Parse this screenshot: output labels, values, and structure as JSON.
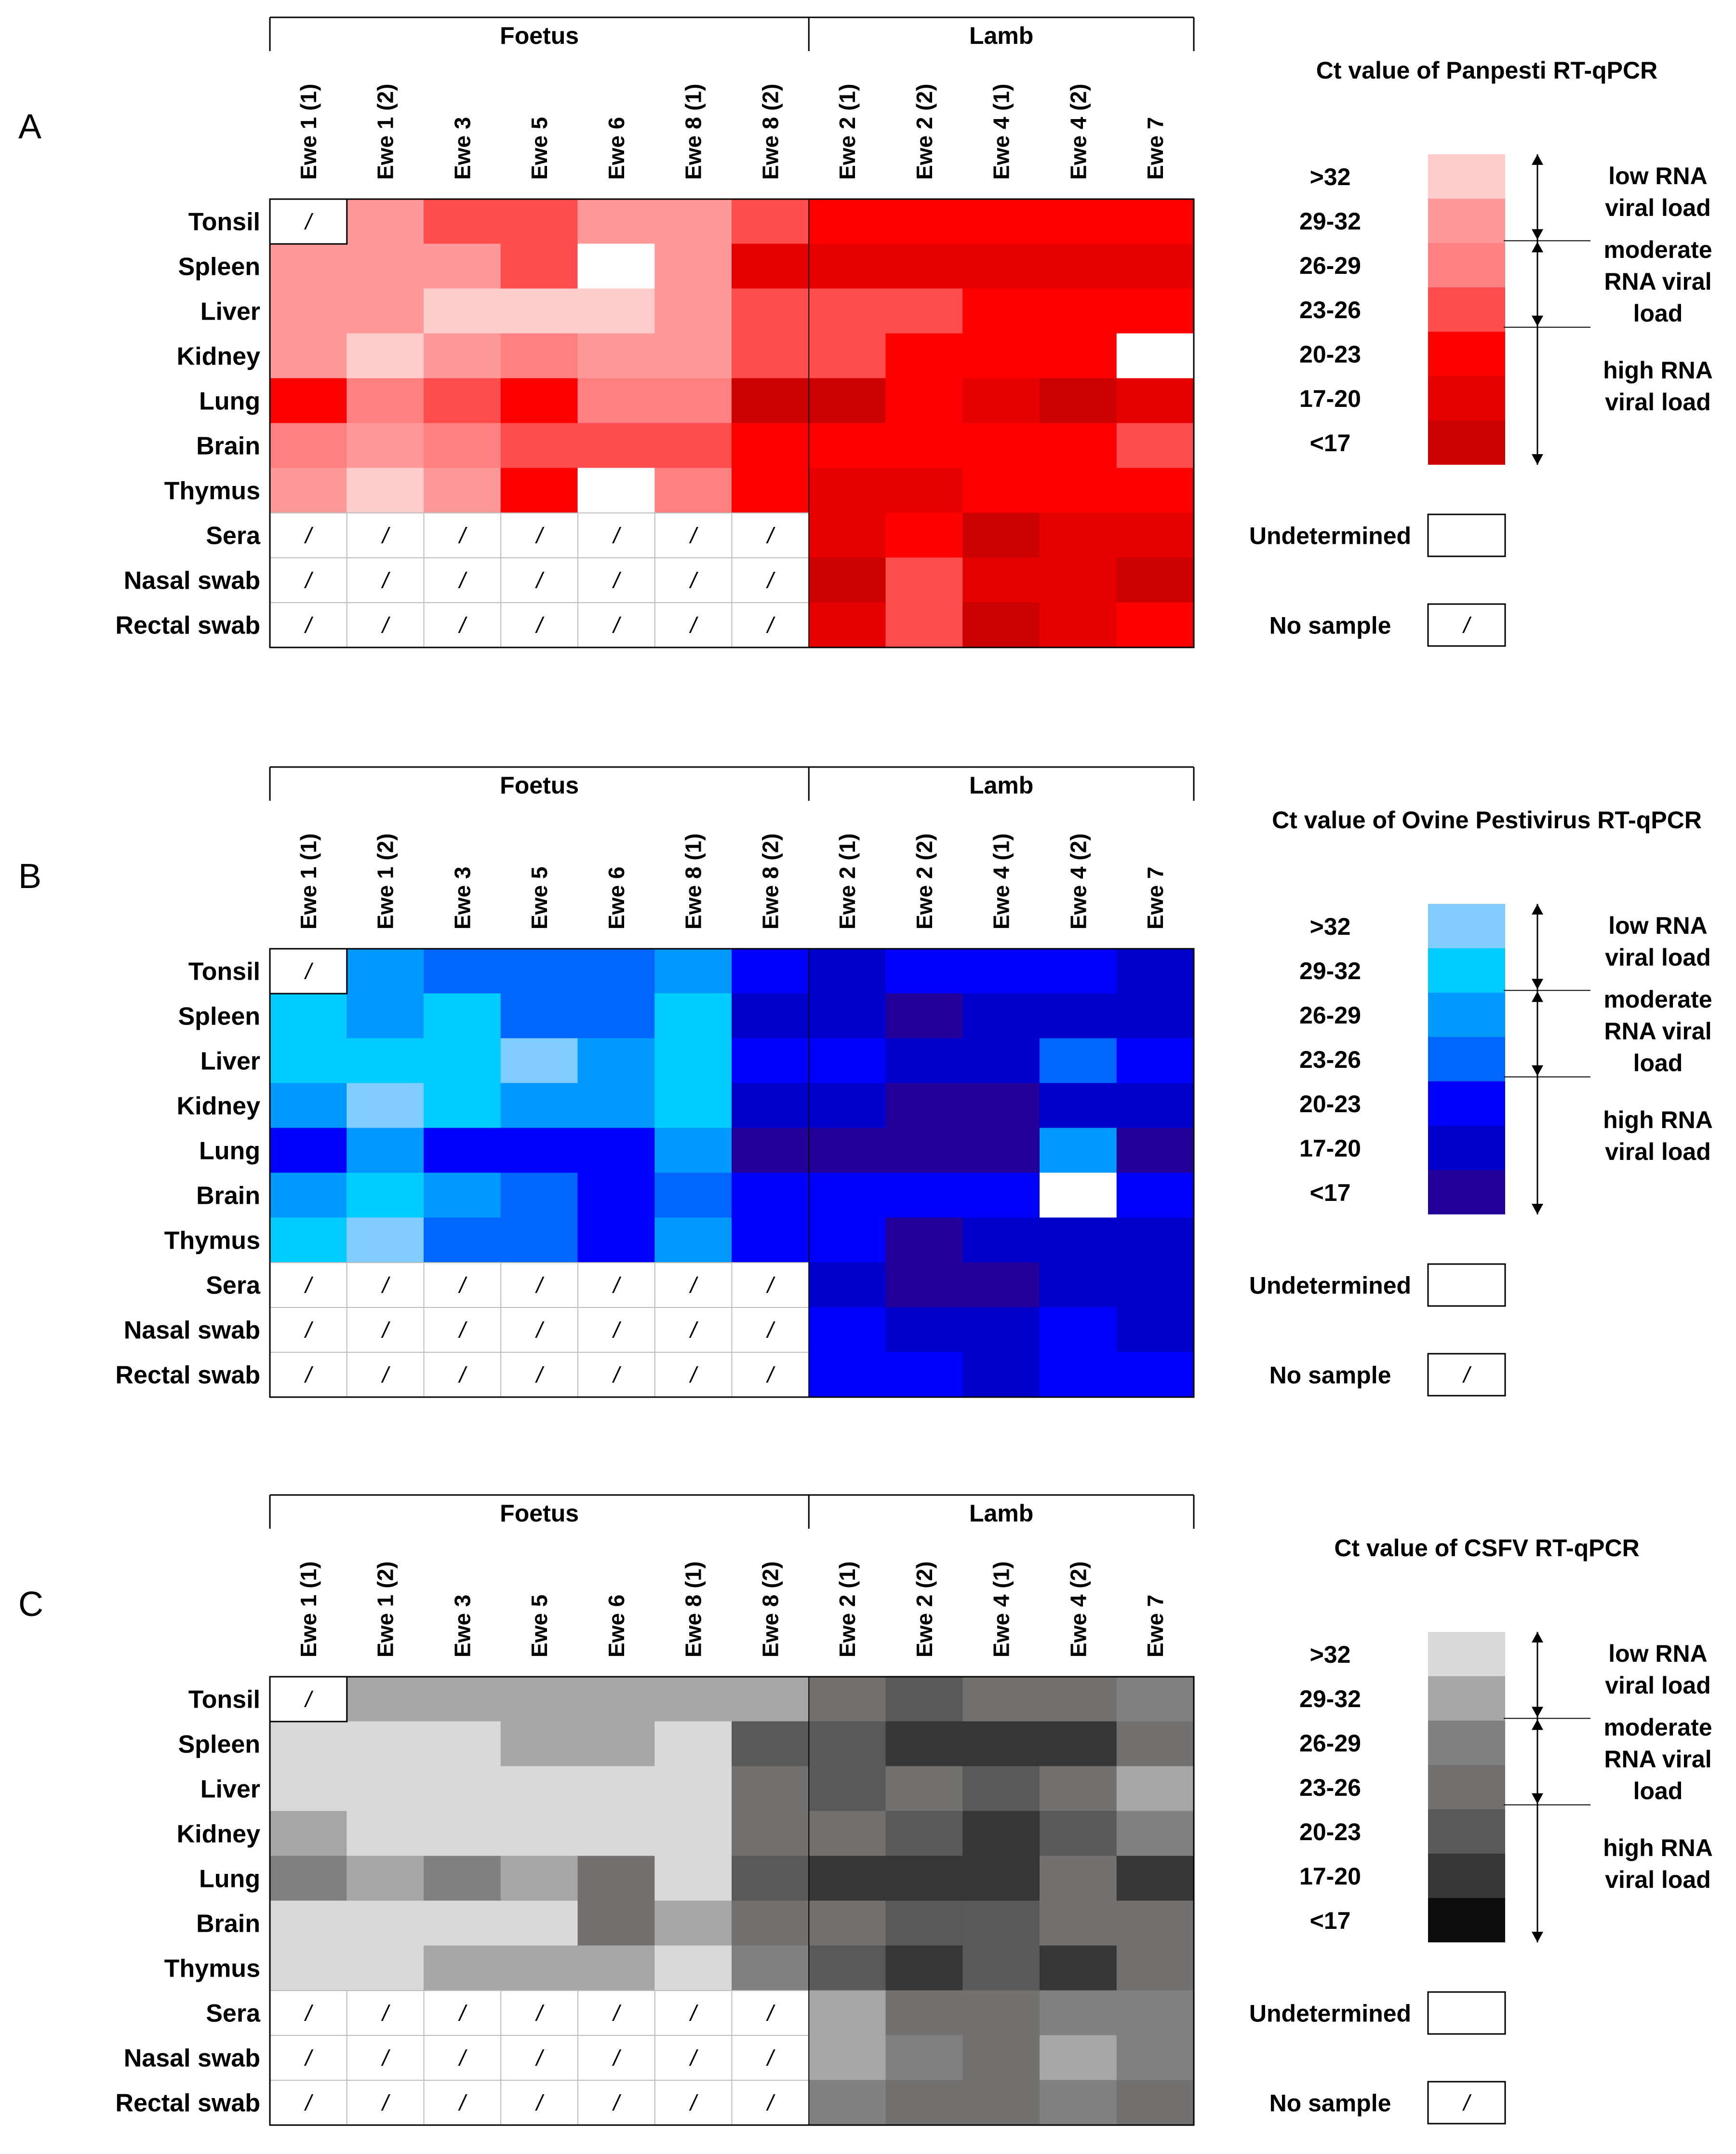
{
  "chart_data": [
    {
      "type": "heatmap",
      "panel": "A",
      "title": "Ct value of Panpesti RT-qPCR",
      "groups": [
        {
          "label": "Foetus",
          "columns": [
            "Ewe 1 (1)",
            "Ewe 1 (2)",
            "Ewe 3",
            "Ewe 5",
            "Ewe 6",
            "Ewe 8 (1)",
            "Ewe 8 (2)"
          ]
        },
        {
          "label": "Lamb",
          "columns": [
            "Ewe 2 (1)",
            "Ewe 2 (2)",
            "Ewe 4 (1)",
            "Ewe 4 (2)",
            "Ewe 7"
          ]
        }
      ],
      "columns": [
        "Ewe 1 (1)",
        "Ewe 1 (2)",
        "Ewe 3",
        "Ewe 5",
        "Ewe 6",
        "Ewe 8 (1)",
        "Ewe 8 (2)",
        "Ewe 2 (1)",
        "Ewe 2 (2)",
        "Ewe 4 (1)",
        "Ewe 4 (2)",
        "Ewe 7"
      ],
      "rows": [
        "Tonsil",
        "Spleen",
        "Liver",
        "Kidney",
        "Lung",
        "Brain",
        "Thymus",
        "Sera",
        "Nasal swab",
        "Rectal swab"
      ],
      "values": [
        [
          "/",
          "29-32",
          "23-26",
          "23-26",
          "29-32",
          "29-32",
          "23-26",
          "20-23",
          "20-23",
          "20-23",
          "20-23",
          "20-23"
        ],
        [
          "29-32",
          "29-32",
          "29-32",
          "23-26",
          "U",
          "29-32",
          "17-20",
          "17-20",
          "17-20",
          "17-20",
          "17-20",
          "17-20"
        ],
        [
          "29-32",
          "29-32",
          ">32",
          ">32",
          ">32",
          "29-32",
          "23-26",
          "23-26",
          "23-26",
          "20-23",
          "20-23",
          "20-23"
        ],
        [
          "29-32",
          ">32",
          "29-32",
          "26-29",
          "29-32",
          "29-32",
          "23-26",
          "23-26",
          "20-23",
          "20-23",
          "20-23",
          "U"
        ],
        [
          "20-23",
          "26-29",
          "23-26",
          "20-23",
          "26-29",
          "26-29",
          "<17",
          "<17",
          "20-23",
          "17-20",
          "<17",
          "17-20"
        ],
        [
          "26-29",
          "29-32",
          "26-29",
          "23-26",
          "23-26",
          "23-26",
          "20-23",
          "20-23",
          "20-23",
          "20-23",
          "20-23",
          "23-26"
        ],
        [
          "29-32",
          ">32",
          "29-32",
          "20-23",
          "U",
          "26-29",
          "20-23",
          "17-20",
          "17-20",
          "20-23",
          "20-23",
          "20-23"
        ],
        [
          "/",
          "/",
          "/",
          "/",
          "/",
          "/",
          "/",
          "17-20",
          "20-23",
          "<17",
          "17-20",
          "17-20"
        ],
        [
          "/",
          "/",
          "/",
          "/",
          "/",
          "/",
          "/",
          "<17",
          "23-26",
          "17-20",
          "17-20",
          "<17"
        ],
        [
          "/",
          "/",
          "/",
          "/",
          "/",
          "/",
          "/",
          "17-20",
          "23-26",
          "<17",
          "17-20",
          "20-23"
        ]
      ],
      "legend": {
        "bins": [
          ">32",
          "29-32",
          "26-29",
          "23-26",
          "20-23",
          "17-20",
          "<17"
        ],
        "colors": [
          "#ffcccc",
          "#ff9999",
          "#ff8080",
          "#ff4d4d",
          "#ff0000",
          "#e60000",
          "#cc0000"
        ],
        "categories": [
          "low RNA viral load",
          "moderate RNA viral load",
          "high RNA viral load"
        ],
        "undetermined_label": "Undetermined",
        "no_sample_label": "No sample",
        "no_sample_symbol": "/"
      }
    },
    {
      "type": "heatmap",
      "panel": "B",
      "title": "Ct value of Ovine Pestivirus RT-qPCR",
      "groups": [
        {
          "label": "Foetus",
          "columns": [
            "Ewe 1 (1)",
            "Ewe 1 (2)",
            "Ewe 3",
            "Ewe 5",
            "Ewe 6",
            "Ewe 8 (1)",
            "Ewe 8 (2)"
          ]
        },
        {
          "label": "Lamb",
          "columns": [
            "Ewe 2 (1)",
            "Ewe 2 (2)",
            "Ewe 4 (1)",
            "Ewe 4 (2)",
            "Ewe 7"
          ]
        }
      ],
      "columns": [
        "Ewe 1 (1)",
        "Ewe 1 (2)",
        "Ewe 3",
        "Ewe 5",
        "Ewe 6",
        "Ewe 8 (1)",
        "Ewe 8 (2)",
        "Ewe 2 (1)",
        "Ewe 2 (2)",
        "Ewe 4 (1)",
        "Ewe 4 (2)",
        "Ewe 7"
      ],
      "rows": [
        "Tonsil",
        "Spleen",
        "Liver",
        "Kidney",
        "Lung",
        "Brain",
        "Thymus",
        "Sera",
        "Nasal swab",
        "Rectal swab"
      ],
      "values": [
        [
          "/",
          "26-29",
          "23-26",
          "23-26",
          "23-26",
          "26-29",
          "20-23",
          "17-20",
          "20-23",
          "20-23",
          "20-23",
          "17-20"
        ],
        [
          "29-32",
          "26-29",
          "29-32",
          "23-26",
          "23-26",
          "29-32",
          "17-20",
          "17-20",
          "<17",
          "17-20",
          "17-20",
          "17-20"
        ],
        [
          "29-32",
          "29-32",
          "29-32",
          ">32",
          "26-29",
          "29-32",
          "20-23",
          "20-23",
          "17-20",
          "17-20",
          "23-26",
          "20-23"
        ],
        [
          "26-29",
          ">32",
          "29-32",
          "26-29",
          "26-29",
          "29-32",
          "17-20",
          "17-20",
          "<17",
          "<17",
          "17-20",
          "17-20"
        ],
        [
          "20-23",
          "26-29",
          "20-23",
          "20-23",
          "20-23",
          "26-29",
          "<17",
          "<17",
          "<17",
          "<17",
          "26-29",
          "<17"
        ],
        [
          "26-29",
          "29-32",
          "26-29",
          "23-26",
          "20-23",
          "23-26",
          "20-23",
          "20-23",
          "20-23",
          "20-23",
          "U",
          "20-23"
        ],
        [
          "29-32",
          ">32",
          "23-26",
          "23-26",
          "20-23",
          "26-29",
          "20-23",
          "20-23",
          "<17",
          "17-20",
          "17-20",
          "17-20"
        ],
        [
          "/",
          "/",
          "/",
          "/",
          "/",
          "/",
          "/",
          "17-20",
          "<17",
          "<17",
          "17-20",
          "17-20"
        ],
        [
          "/",
          "/",
          "/",
          "/",
          "/",
          "/",
          "/",
          "20-23",
          "17-20",
          "17-20",
          "20-23",
          "17-20"
        ],
        [
          "/",
          "/",
          "/",
          "/",
          "/",
          "/",
          "/",
          "20-23",
          "20-23",
          "17-20",
          "20-23",
          "20-23"
        ]
      ],
      "legend": {
        "bins": [
          ">32",
          "29-32",
          "26-29",
          "23-26",
          "20-23",
          "17-20",
          "<17"
        ],
        "colors": [
          "#80ccff",
          "#00ccff",
          "#0099ff",
          "#0066ff",
          "#0000ff",
          "#0000cc",
          "#220099"
        ],
        "categories": [
          "low RNA viral load",
          "moderate RNA viral load",
          "high RNA viral load"
        ],
        "undetermined_label": "Undetermined",
        "no_sample_label": "No sample",
        "no_sample_symbol": "/"
      }
    },
    {
      "type": "heatmap",
      "panel": "C",
      "title": "Ct value of CSFV RT-qPCR",
      "groups": [
        {
          "label": "Foetus",
          "columns": [
            "Ewe 1 (1)",
            "Ewe 1 (2)",
            "Ewe 3",
            "Ewe 5",
            "Ewe 6",
            "Ewe 8 (1)",
            "Ewe 8 (2)"
          ]
        },
        {
          "label": "Lamb",
          "columns": [
            "Ewe 2 (1)",
            "Ewe 2 (2)",
            "Ewe 4 (1)",
            "Ewe 4 (2)",
            "Ewe 7"
          ]
        }
      ],
      "columns": [
        "Ewe 1 (1)",
        "Ewe 1 (2)",
        "Ewe 3",
        "Ewe 5",
        "Ewe 6",
        "Ewe 8 (1)",
        "Ewe 8 (2)",
        "Ewe 2 (1)",
        "Ewe 2 (2)",
        "Ewe 4 (1)",
        "Ewe 4 (2)",
        "Ewe 7"
      ],
      "rows": [
        "Tonsil",
        "Spleen",
        "Liver",
        "Kidney",
        "Lung",
        "Brain",
        "Thymus",
        "Sera",
        "Nasal swab",
        "Rectal swab"
      ],
      "values": [
        [
          "/",
          "29-32",
          "29-32",
          "29-32",
          "29-32",
          "29-32",
          "29-32",
          "23-26",
          "20-23",
          "23-26",
          "23-26",
          "26-29"
        ],
        [
          ">32",
          ">32",
          ">32",
          "29-32",
          "29-32",
          ">32",
          "20-23",
          "20-23",
          "17-20",
          "17-20",
          "17-20",
          "23-26"
        ],
        [
          ">32",
          ">32",
          ">32",
          ">32",
          ">32",
          ">32",
          "23-26",
          "20-23",
          "23-26",
          "20-23",
          "23-26",
          "29-32"
        ],
        [
          "29-32",
          ">32",
          ">32",
          ">32",
          ">32",
          ">32",
          "23-26",
          "23-26",
          "20-23",
          "17-20",
          "20-23",
          "26-29"
        ],
        [
          "26-29",
          "29-32",
          "26-29",
          "29-32",
          "23-26",
          ">32",
          "20-23",
          "17-20",
          "17-20",
          "17-20",
          "23-26",
          "17-20"
        ],
        [
          ">32",
          ">32",
          ">32",
          ">32",
          "23-26",
          "29-32",
          "23-26",
          "23-26",
          "20-23",
          "20-23",
          "23-26",
          "23-26"
        ],
        [
          ">32",
          ">32",
          "29-32",
          "29-32",
          "29-32",
          ">32",
          "26-29",
          "20-23",
          "17-20",
          "20-23",
          "17-20",
          "23-26"
        ],
        [
          "/",
          "/",
          "/",
          "/",
          "/",
          "/",
          "/",
          "29-32",
          "23-26",
          "23-26",
          "26-29",
          "26-29"
        ],
        [
          "/",
          "/",
          "/",
          "/",
          "/",
          "/",
          "/",
          "29-32",
          "26-29",
          "23-26",
          "29-32",
          "26-29"
        ],
        [
          "/",
          "/",
          "/",
          "/",
          "/",
          "/",
          "/",
          "26-29",
          "23-26",
          "23-26",
          "26-29",
          "23-26"
        ]
      ],
      "legend": {
        "bins": [
          ">32",
          "29-32",
          "26-29",
          "23-26",
          "20-23",
          "17-20",
          "<17"
        ],
        "colors": [
          "#d9d9d9",
          "#a6a6a6",
          "#808080",
          "#737070",
          "#595959",
          "#363636",
          "#0d0d0d"
        ],
        "categories": [
          "low RNA viral load",
          "moderate RNA viral load",
          "high RNA viral load"
        ],
        "undetermined_label": "Undetermined",
        "no_sample_label": "No sample",
        "no_sample_symbol": "/"
      }
    }
  ]
}
